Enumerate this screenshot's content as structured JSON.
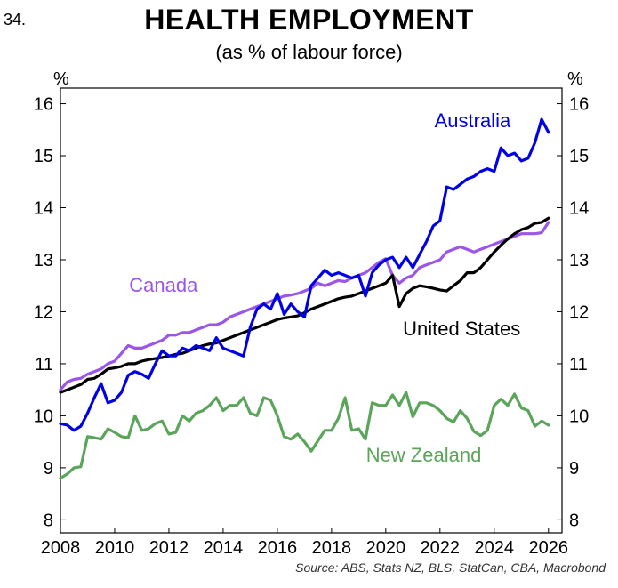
{
  "header": {
    "chart_number": "34.",
    "title": "HEALTH EMPLOYMENT",
    "subtitle": "(as % of labour force)",
    "unit_left": "%",
    "unit_right": "%"
  },
  "footer": {
    "source": "Source: ABS, Stats NZ, BLS, StatCan, CBA, Macrobond"
  },
  "chart_data": {
    "type": "line",
    "title": "HEALTH EMPLOYMENT",
    "subtitle": "(as % of labour force)",
    "xlabel": "",
    "ylabel": "%",
    "xlim": [
      2008,
      2026.5
    ],
    "ylim": [
      7.75,
      16.3
    ],
    "x_ticks": [
      2008,
      2010,
      2012,
      2014,
      2016,
      2018,
      2020,
      2022,
      2024,
      2026
    ],
    "y_ticks": [
      8,
      9,
      10,
      11,
      12,
      13,
      14,
      15,
      16
    ],
    "grid": false,
    "legend": "inline labels",
    "series": [
      {
        "name": "Australia",
        "color": "#0000e6",
        "x": [
          2008.0,
          2008.25,
          2008.5,
          2008.75,
          2009.0,
          2009.25,
          2009.5,
          2009.75,
          2010.0,
          2010.25,
          2010.5,
          2010.75,
          2011.0,
          2011.25,
          2011.5,
          2011.75,
          2012.0,
          2012.25,
          2012.5,
          2012.75,
          2013.0,
          2013.25,
          2013.5,
          2013.75,
          2014.0,
          2014.25,
          2014.5,
          2014.75,
          2015.0,
          2015.25,
          2015.5,
          2015.75,
          2016.0,
          2016.25,
          2016.5,
          2016.75,
          2017.0,
          2017.25,
          2017.5,
          2017.75,
          2018.0,
          2018.25,
          2018.5,
          2018.75,
          2019.0,
          2019.25,
          2019.5,
          2019.75,
          2020.0,
          2020.25,
          2020.5,
          2020.75,
          2021.0,
          2021.25,
          2021.5,
          2021.75,
          2022.0,
          2022.25,
          2022.5,
          2022.75,
          2023.0,
          2023.25,
          2023.5,
          2023.75,
          2024.0,
          2024.25,
          2024.5,
          2024.75,
          2025.0,
          2025.25,
          2025.5,
          2025.75,
          2026.0
        ],
        "values": [
          9.85,
          9.82,
          9.72,
          9.8,
          10.05,
          10.35,
          10.62,
          10.25,
          10.3,
          10.45,
          10.78,
          10.85,
          10.8,
          10.72,
          11.0,
          11.25,
          11.15,
          11.15,
          11.3,
          11.25,
          11.35,
          11.3,
          11.25,
          11.5,
          11.3,
          11.25,
          11.2,
          11.15,
          11.7,
          12.05,
          12.15,
          12.05,
          12.35,
          11.95,
          12.15,
          12.0,
          11.9,
          12.5,
          12.65,
          12.8,
          12.7,
          12.75,
          12.7,
          12.65,
          12.7,
          12.3,
          12.75,
          12.9,
          13.0,
          13.05,
          12.85,
          13.05,
          12.85,
          13.1,
          13.35,
          13.65,
          13.75,
          14.4,
          14.35,
          14.45,
          14.55,
          14.6,
          14.7,
          14.75,
          14.7,
          15.15,
          15.0,
          15.05,
          14.9,
          14.95,
          15.25,
          15.7,
          15.45
        ]
      },
      {
        "name": "Canada",
        "color": "#9b55e8",
        "x": [
          2008.0,
          2008.25,
          2008.5,
          2008.75,
          2009.0,
          2009.25,
          2009.5,
          2009.75,
          2010.0,
          2010.25,
          2010.5,
          2010.75,
          2011.0,
          2011.25,
          2011.5,
          2011.75,
          2012.0,
          2012.25,
          2012.5,
          2012.75,
          2013.0,
          2013.25,
          2013.5,
          2013.75,
          2014.0,
          2014.25,
          2014.5,
          2014.75,
          2015.0,
          2015.25,
          2015.5,
          2015.75,
          2016.0,
          2016.25,
          2016.5,
          2016.75,
          2017.0,
          2017.25,
          2017.5,
          2017.75,
          2018.0,
          2018.25,
          2018.5,
          2018.75,
          2019.0,
          2019.25,
          2019.5,
          2019.75,
          2020.0,
          2020.25,
          2020.5,
          2020.75,
          2021.0,
          2021.25,
          2021.5,
          2021.75,
          2022.0,
          2022.25,
          2022.5,
          2022.75,
          2023.0,
          2023.25,
          2023.5,
          2023.75,
          2024.0,
          2024.25,
          2024.5,
          2024.75,
          2025.0,
          2025.25,
          2025.5,
          2025.75,
          2026.0
        ],
        "values": [
          10.5,
          10.65,
          10.7,
          10.72,
          10.8,
          10.85,
          10.9,
          11.0,
          11.05,
          11.2,
          11.35,
          11.3,
          11.3,
          11.35,
          11.4,
          11.45,
          11.55,
          11.55,
          11.6,
          11.6,
          11.65,
          11.7,
          11.75,
          11.75,
          11.8,
          11.9,
          11.95,
          12.0,
          12.05,
          12.1,
          12.15,
          12.2,
          12.25,
          12.3,
          12.32,
          12.35,
          12.4,
          12.45,
          12.55,
          12.5,
          12.55,
          12.6,
          12.58,
          12.65,
          12.7,
          12.75,
          12.85,
          12.95,
          13.02,
          12.7,
          12.55,
          12.65,
          12.7,
          12.85,
          12.9,
          12.95,
          13.0,
          13.15,
          13.2,
          13.25,
          13.2,
          13.15,
          13.2,
          13.25,
          13.3,
          13.35,
          13.4,
          13.45,
          13.5,
          13.5,
          13.5,
          13.52,
          13.72
        ]
      },
      {
        "name": "United States",
        "color": "#000000",
        "x": [
          2008.0,
          2008.25,
          2008.5,
          2008.75,
          2009.0,
          2009.25,
          2009.5,
          2009.75,
          2010.0,
          2010.25,
          2010.5,
          2010.75,
          2011.0,
          2011.25,
          2011.5,
          2011.75,
          2012.0,
          2012.25,
          2012.5,
          2012.75,
          2013.0,
          2013.25,
          2013.5,
          2013.75,
          2014.0,
          2014.25,
          2014.5,
          2014.75,
          2015.0,
          2015.25,
          2015.5,
          2015.75,
          2016.0,
          2016.25,
          2016.5,
          2016.75,
          2017.0,
          2017.25,
          2017.5,
          2017.75,
          2018.0,
          2018.25,
          2018.5,
          2018.75,
          2019.0,
          2019.25,
          2019.5,
          2019.75,
          2020.0,
          2020.25,
          2020.5,
          2020.75,
          2021.0,
          2021.25,
          2021.5,
          2021.75,
          2022.0,
          2022.25,
          2022.5,
          2022.75,
          2023.0,
          2023.25,
          2023.5,
          2023.75,
          2024.0,
          2024.25,
          2024.5,
          2024.75,
          2025.0,
          2025.25,
          2025.5,
          2025.75,
          2026.0
        ],
        "values": [
          10.45,
          10.5,
          10.55,
          10.6,
          10.7,
          10.72,
          10.8,
          10.9,
          10.92,
          10.95,
          11.0,
          11.0,
          11.05,
          11.08,
          11.1,
          11.12,
          11.15,
          11.18,
          11.2,
          11.25,
          11.3,
          11.35,
          11.38,
          11.4,
          11.45,
          11.5,
          11.55,
          11.6,
          11.65,
          11.7,
          11.75,
          11.8,
          11.85,
          11.88,
          11.9,
          11.92,
          11.98,
          12.05,
          12.1,
          12.15,
          12.2,
          12.25,
          12.28,
          12.3,
          12.35,
          12.4,
          12.45,
          12.5,
          12.55,
          12.7,
          12.1,
          12.35,
          12.45,
          12.5,
          12.48,
          12.45,
          12.42,
          12.4,
          12.5,
          12.6,
          12.75,
          12.75,
          12.85,
          13.0,
          13.15,
          13.28,
          13.4,
          13.5,
          13.58,
          13.62,
          13.7,
          13.72,
          13.8
        ]
      },
      {
        "name": "New Zealand",
        "color": "#5aa55a",
        "x": [
          2008.0,
          2008.25,
          2008.5,
          2008.75,
          2009.0,
          2009.25,
          2009.5,
          2009.75,
          2010.0,
          2010.25,
          2010.5,
          2010.75,
          2011.0,
          2011.25,
          2011.5,
          2011.75,
          2012.0,
          2012.25,
          2012.5,
          2012.75,
          2013.0,
          2013.25,
          2013.5,
          2013.75,
          2014.0,
          2014.25,
          2014.5,
          2014.75,
          2015.0,
          2015.25,
          2015.5,
          2015.75,
          2016.0,
          2016.25,
          2016.5,
          2016.75,
          2017.0,
          2017.25,
          2017.5,
          2017.75,
          2018.0,
          2018.25,
          2018.5,
          2018.75,
          2019.0,
          2019.25,
          2019.5,
          2019.75,
          2020.0,
          2020.25,
          2020.5,
          2020.75,
          2021.0,
          2021.25,
          2021.5,
          2021.75,
          2022.0,
          2022.25,
          2022.5,
          2022.75,
          2023.0,
          2023.25,
          2023.5,
          2023.75,
          2024.0,
          2024.25,
          2024.5,
          2024.75,
          2025.0,
          2025.25,
          2025.5,
          2025.75,
          2026.0
        ],
        "values": [
          8.8,
          8.88,
          9.0,
          9.02,
          9.6,
          9.58,
          9.55,
          9.75,
          9.68,
          9.6,
          9.58,
          10.0,
          9.72,
          9.75,
          9.85,
          9.9,
          9.65,
          9.68,
          10.0,
          9.9,
          10.05,
          10.1,
          10.2,
          10.35,
          10.1,
          10.2,
          10.2,
          10.35,
          10.05,
          10.0,
          10.35,
          10.3,
          10.0,
          9.6,
          9.55,
          9.65,
          9.5,
          9.32,
          9.52,
          9.72,
          9.72,
          9.95,
          10.35,
          9.72,
          9.75,
          9.55,
          10.25,
          10.2,
          10.2,
          10.4,
          10.2,
          10.45,
          9.98,
          10.25,
          10.25,
          10.2,
          10.1,
          9.95,
          9.88,
          10.1,
          9.95,
          9.7,
          9.62,
          9.72,
          10.2,
          10.32,
          10.2,
          10.42,
          10.15,
          10.1,
          9.8,
          9.9,
          9.82
        ]
      }
    ],
    "annotations": [
      {
        "text": "Australia",
        "series": "Australia"
      },
      {
        "text": "Canada",
        "series": "Canada"
      },
      {
        "text": "United States",
        "series": "United States"
      },
      {
        "text": "New Zealand",
        "series": "New Zealand"
      }
    ]
  }
}
